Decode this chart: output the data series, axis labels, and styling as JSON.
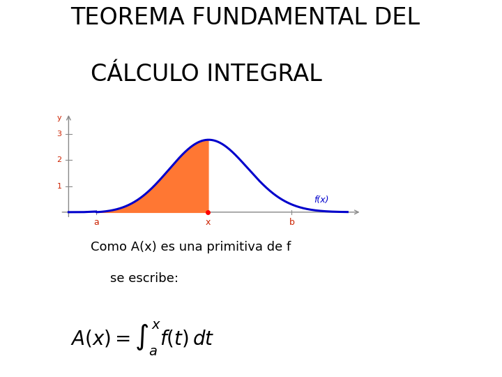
{
  "title_line1": "TEOREMA FUNDAMENTAL DEL",
  "title_line2": "CÁLCULO INTEGRAL",
  "title_fontsize": 24,
  "title_color": "#000000",
  "curve_color": "#0000CC",
  "fill_color": "#FF7733",
  "fill_alpha": 1.0,
  "axis_color": "#888888",
  "tick_label_color": "#CC2200",
  "label_fx": "f(x)",
  "label_a": "a",
  "label_x": "x",
  "label_b": "b",
  "text1": "Como A(x) es una primitiva de f",
  "text2": "se escribe:",
  "text_fontsize": 13,
  "background_color": "#ffffff"
}
